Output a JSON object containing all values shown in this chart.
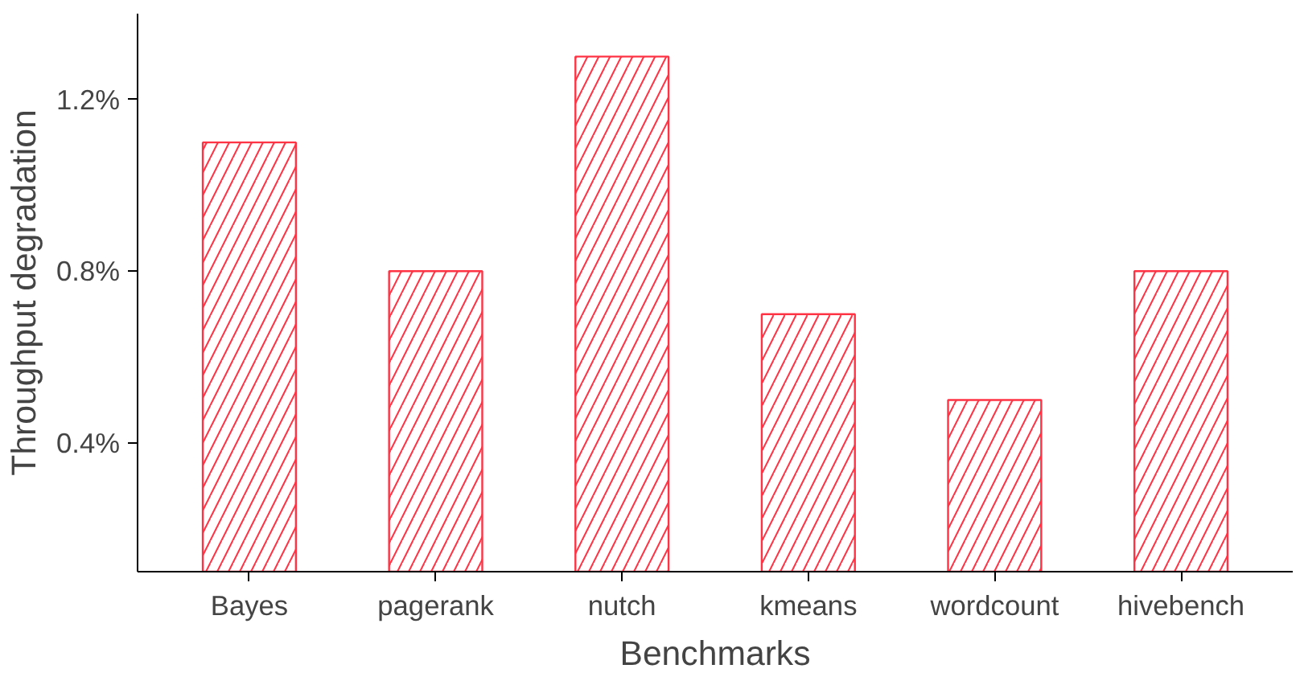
{
  "chart_data": {
    "type": "bar",
    "xlabel": "Benchmarks",
    "ylabel": "Throughput degradation",
    "categories": [
      "Bayes",
      "pagerank",
      "nutch",
      "kmeans",
      "wordcount",
      "hivebench"
    ],
    "values": [
      1.1,
      0.8,
      1.3,
      0.7,
      0.5,
      0.8
    ],
    "color": "#ff3344",
    "ylim": [
      0.1,
      1.4
    ],
    "yticks": [
      {
        "value": 0.4,
        "label": "0.4%"
      },
      {
        "value": 0.8,
        "label": "0.8%"
      },
      {
        "value": 1.2,
        "label": "1.2%"
      }
    ],
    "grid": false
  }
}
